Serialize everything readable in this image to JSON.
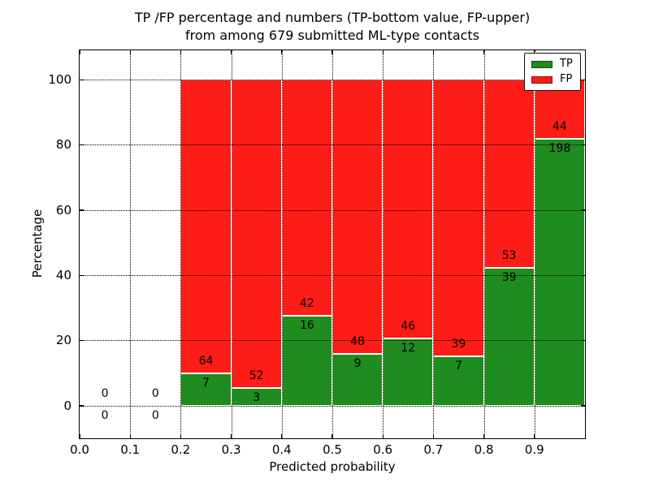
{
  "figure": {
    "title_line1": "TP /FP percentage and numbers (TP-bottom value, FP-upper)",
    "title_line2": "from among 679 submitted ML-type contacts",
    "xlabel": "Predicted probability",
    "ylabel": "Percentage"
  },
  "legend": {
    "position": "upper right",
    "items": [
      {
        "label": "TP",
        "color": "#1f8c1f"
      },
      {
        "label": "FP",
        "color": "#fc1d16"
      }
    ]
  },
  "chart_data": {
    "type": "bar",
    "stacked": true,
    "normalized_to_percent": true,
    "title": "TP /FP percentage and numbers (TP-bottom value, FP-upper) from among 679 submitted ML-type contacts",
    "xlabel": "Predicted probability",
    "ylabel": "Percentage",
    "total_contacts": 679,
    "xlim": [
      0.0,
      1.0
    ],
    "ylim": [
      -10,
      109
    ],
    "x_ticks": [
      "0.0",
      "0.1",
      "0.2",
      "0.3",
      "0.4",
      "0.5",
      "0.6",
      "0.7",
      "0.8",
      "0.9"
    ],
    "x_tick_values": [
      0.0,
      0.1,
      0.2,
      0.3,
      0.4,
      0.5,
      0.6,
      0.7,
      0.8,
      0.9
    ],
    "y_ticks": [
      0,
      20,
      40,
      60,
      80,
      100
    ],
    "grid": "dotted",
    "bin_edges": [
      0.0,
      0.1,
      0.2,
      0.3,
      0.4,
      0.5,
      0.6,
      0.7,
      0.8,
      0.9,
      1.0
    ],
    "series": [
      {
        "name": "TP",
        "color": "#1f8c1f",
        "counts": [
          0,
          0,
          7,
          3,
          16,
          9,
          12,
          7,
          39,
          198
        ],
        "pct": [
          0,
          0,
          9.86,
          5.45,
          27.59,
          15.79,
          20.69,
          15.22,
          42.39,
          81.82
        ]
      },
      {
        "name": "FP",
        "color": "#fc1d16",
        "counts": [
          0,
          0,
          64,
          52,
          42,
          48,
          46,
          39,
          53,
          44
        ],
        "pct": [
          0,
          0,
          90.14,
          94.55,
          72.41,
          84.21,
          79.31,
          84.78,
          57.61,
          18.18
        ]
      }
    ]
  }
}
